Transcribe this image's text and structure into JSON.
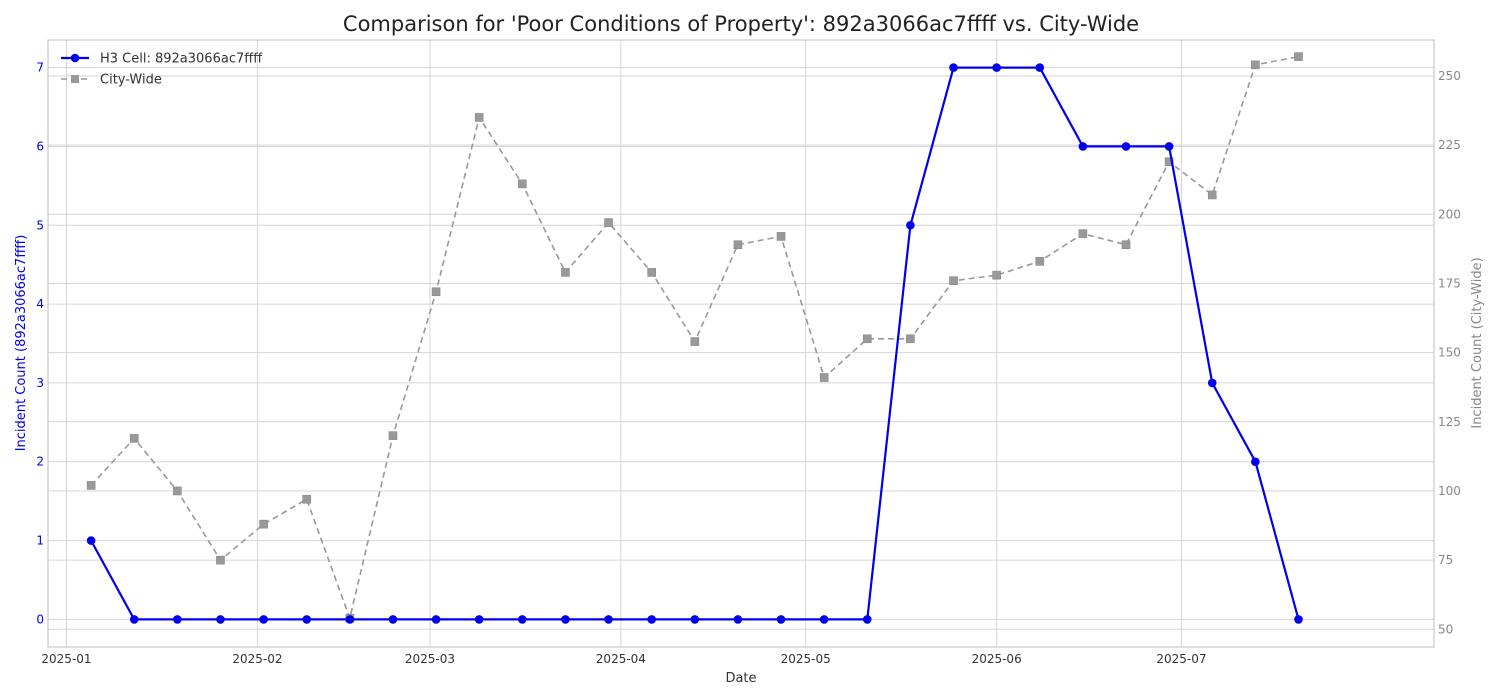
{
  "chart_data": {
    "type": "line",
    "title": "Comparison for 'Poor Conditions of Property': 892a3066ac7ffff vs. City-Wide",
    "xlabel": "Date",
    "ylabel_left": "Incident Count (892a3066ac7ffff)",
    "ylabel_right": "Incident Count (City-Wide)",
    "x_ticks": [
      "2025-01",
      "2025-02",
      "2025-03",
      "2025-04",
      "2025-05",
      "2025-06",
      "2025-07"
    ],
    "x_tick_dates": [
      "2025-01-01",
      "2025-02-01",
      "2025-03-01",
      "2025-04-01",
      "2025-05-01",
      "2025-06-01",
      "2025-07-01"
    ],
    "xlim": [
      "2024-12-29",
      "2025-08-11"
    ],
    "y_left_ticks": [
      0,
      1,
      2,
      3,
      4,
      5,
      6,
      7
    ],
    "y_left_lim": [
      -0.35,
      7.35
    ],
    "y_right_ticks": [
      50,
      75,
      100,
      125,
      150,
      175,
      200,
      225,
      250
    ],
    "y_right_lim": [
      43.6,
      263.0
    ],
    "grid": true,
    "legend_position": "top-left",
    "x": [
      "2025-01-05",
      "2025-01-12",
      "2025-01-19",
      "2025-01-26",
      "2025-02-02",
      "2025-02-09",
      "2025-02-16",
      "2025-02-23",
      "2025-03-02",
      "2025-03-09",
      "2025-03-16",
      "2025-03-23",
      "2025-03-30",
      "2025-04-06",
      "2025-04-13",
      "2025-04-20",
      "2025-04-27",
      "2025-05-04",
      "2025-05-11",
      "2025-05-18",
      "2025-05-25",
      "2025-06-01",
      "2025-06-08",
      "2025-06-15",
      "2025-06-22",
      "2025-06-29",
      "2025-07-06",
      "2025-07-13",
      "2025-07-20"
    ],
    "series": [
      {
        "name": "H3 Cell: 892a3066ac7ffff",
        "axis": "left",
        "color": "#0000ee",
        "marker": "circle",
        "linestyle": "solid",
        "values": [
          1,
          0,
          0,
          0,
          0,
          0,
          0,
          0,
          0,
          0,
          0,
          0,
          0,
          0,
          0,
          0,
          0,
          0,
          0,
          5,
          7,
          7,
          7,
          6,
          6,
          6,
          3,
          2,
          0
        ]
      },
      {
        "name": "City-Wide",
        "axis": "right",
        "color": "#999999",
        "marker": "square",
        "linestyle": "dashed",
        "values": [
          102,
          119,
          100,
          75,
          88,
          97,
          54,
          120,
          172,
          235,
          211,
          179,
          197,
          179,
          154,
          189,
          192,
          141,
          155,
          155,
          176,
          178,
          183,
          193,
          189,
          219,
          207,
          254,
          257
        ]
      }
    ]
  }
}
